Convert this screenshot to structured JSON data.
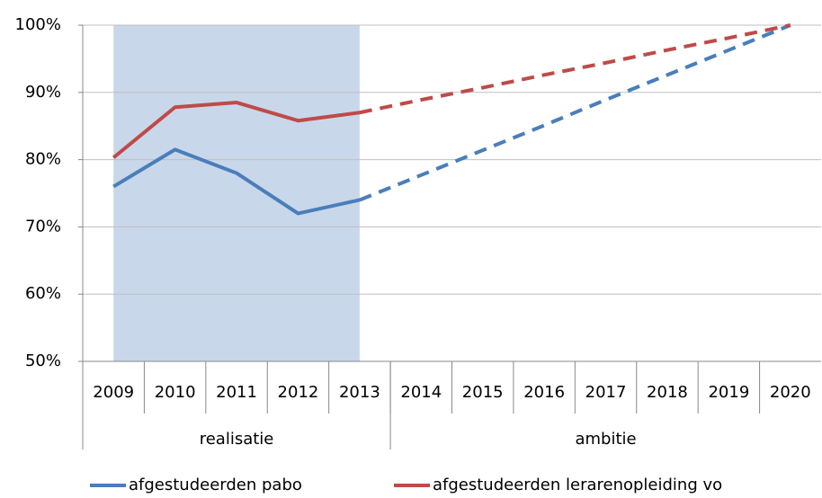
{
  "chart_data": {
    "type": "line",
    "categories": [
      "2009",
      "2010",
      "2011",
      "2012",
      "2013",
      "2014",
      "2015",
      "2016",
      "2017",
      "2018",
      "2019",
      "2020"
    ],
    "groups": [
      {
        "name": "realisatie",
        "start": 0,
        "end": 4
      },
      {
        "name": "ambitie",
        "start": 5,
        "end": 11
      }
    ],
    "highlight_group": 0,
    "dashed_group": 1,
    "highlight_color": "#c9d7ea",
    "series": [
      {
        "name": "afgestudeerden pabo",
        "color": "#4a7ebb",
        "values": [
          76,
          81.5,
          78,
          72,
          74,
          77.7,
          81.4,
          85.1,
          88.9,
          92.6,
          96.3,
          100
        ]
      },
      {
        "name": "afgestudeerden lerarenopleiding vo",
        "color": "#be4b48",
        "values": [
          80.3,
          87.8,
          88.5,
          85.8,
          87,
          88.9,
          90.7,
          92.6,
          94.4,
          96.3,
          98.1,
          100
        ]
      }
    ],
    "ylim": [
      50,
      100
    ],
    "yticks": [
      {
        "value": 50,
        "label": "50%"
      },
      {
        "value": 60,
        "label": "60%"
      },
      {
        "value": 70,
        "label": "70%"
      },
      {
        "value": 80,
        "label": "80%"
      },
      {
        "value": 90,
        "label": "90%"
      },
      {
        "value": 100,
        "label": "100%"
      }
    ],
    "grid": true,
    "legend": "bottom"
  }
}
